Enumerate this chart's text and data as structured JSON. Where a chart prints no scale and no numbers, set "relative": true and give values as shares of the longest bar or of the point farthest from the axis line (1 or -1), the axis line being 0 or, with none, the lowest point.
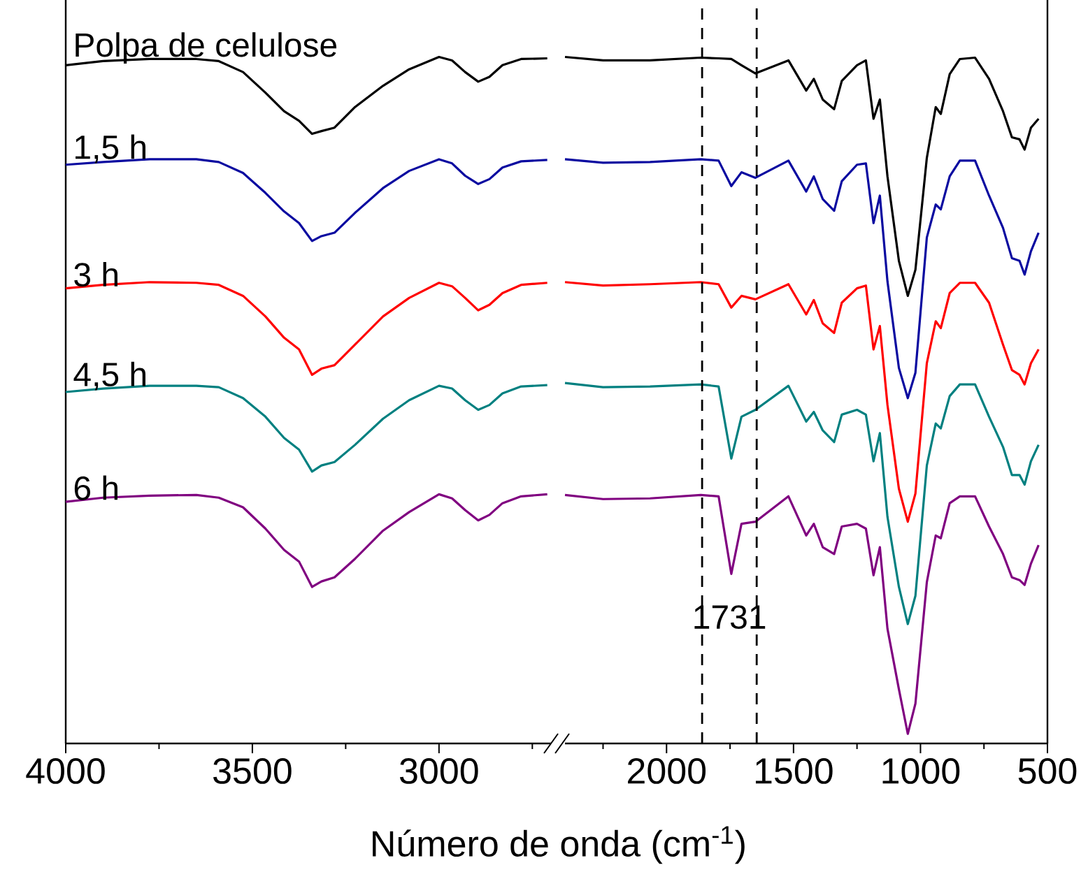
{
  "chart_data": [
    {
      "type": "line",
      "relative": true,
      "xlabel": "Número de onda (cm$^{-1}$)",
      "xlim": [
        4000,
        2700
      ],
      "xticks": [
        4000,
        3500,
        3000
      ],
      "x": [
        4000,
        3900,
        3775,
        3650,
        3590,
        3525,
        3465,
        3415,
        3375,
        3340,
        3315,
        3280,
        3225,
        3150,
        3080,
        3000,
        2965,
        2930,
        2895,
        2865,
        2830,
        2780,
        2710
      ],
      "series": [
        {
          "name": "Polpa de celulose",
          "color": "#000000",
          "values": [
            0.988,
            0.994,
            0.997,
            0.997,
            0.994,
            0.978,
            0.948,
            0.921,
            0.907,
            0.888,
            0.892,
            0.897,
            0.927,
            0.958,
            0.982,
            1.0,
            0.995,
            0.978,
            0.964,
            0.971,
            0.988,
            0.997,
            0.998
          ]
        },
        {
          "name": "1,5 h",
          "color": "#0a0aa0",
          "values": [
            0.843,
            0.847,
            0.851,
            0.851,
            0.847,
            0.831,
            0.802,
            0.775,
            0.758,
            0.732,
            0.739,
            0.744,
            0.773,
            0.809,
            0.834,
            0.851,
            0.845,
            0.827,
            0.815,
            0.822,
            0.839,
            0.848,
            0.85
          ]
        },
        {
          "name": "3 h",
          "color": "#ff0000",
          "values": [
            0.663,
            0.668,
            0.672,
            0.671,
            0.668,
            0.652,
            0.622,
            0.591,
            0.574,
            0.537,
            0.546,
            0.551,
            0.581,
            0.622,
            0.649,
            0.671,
            0.666,
            0.649,
            0.631,
            0.639,
            0.656,
            0.668,
            0.671
          ]
        },
        {
          "name": "4,5 h",
          "color": "#008080",
          "values": [
            0.512,
            0.517,
            0.521,
            0.521,
            0.519,
            0.503,
            0.476,
            0.445,
            0.428,
            0.396,
            0.405,
            0.41,
            0.435,
            0.473,
            0.5,
            0.521,
            0.517,
            0.5,
            0.486,
            0.493,
            0.51,
            0.52,
            0.522
          ]
        },
        {
          "name": "6 h",
          "color": "#800080",
          "values": [
            0.352,
            0.358,
            0.361,
            0.362,
            0.358,
            0.344,
            0.313,
            0.282,
            0.265,
            0.228,
            0.236,
            0.242,
            0.269,
            0.31,
            0.337,
            0.363,
            0.357,
            0.34,
            0.325,
            0.333,
            0.35,
            0.36,
            0.363
          ]
        }
      ]
    },
    {
      "type": "line",
      "relative": true,
      "xlim": [
        2400,
        500
      ],
      "xticks": [
        2000,
        1500,
        1000,
        500
      ],
      "x": [
        2400,
        2250,
        2065,
        1865,
        1795,
        1745,
        1705,
        1650,
        1520,
        1450,
        1420,
        1385,
        1340,
        1310,
        1250,
        1215,
        1185,
        1160,
        1130,
        1085,
        1050,
        1020,
        975,
        940,
        920,
        885,
        845,
        785,
        730,
        675,
        640,
        610,
        590,
        565,
        535
      ],
      "series": [
        {
          "color": "#000000",
          "values": [
            1.0,
            0.995,
            0.995,
            0.999,
            0.998,
            0.997,
            0.988,
            0.976,
            0.995,
            0.951,
            0.968,
            0.938,
            0.924,
            0.965,
            0.988,
            0.995,
            0.91,
            0.938,
            0.826,
            0.703,
            0.652,
            0.69,
            0.853,
            0.927,
            0.917,
            0.975,
            0.997,
            0.999,
            0.968,
            0.921,
            0.883,
            0.88,
            0.865,
            0.897,
            0.91
          ]
        },
        {
          "color": "#0a0aa0",
          "values": [
            0.851,
            0.846,
            0.847,
            0.851,
            0.849,
            0.812,
            0.832,
            0.824,
            0.849,
            0.804,
            0.826,
            0.793,
            0.776,
            0.819,
            0.843,
            0.845,
            0.758,
            0.798,
            0.673,
            0.547,
            0.503,
            0.54,
            0.737,
            0.785,
            0.778,
            0.826,
            0.849,
            0.849,
            0.798,
            0.751,
            0.707,
            0.703,
            0.683,
            0.717,
            0.744
          ]
        },
        {
          "color": "#ff0000",
          "values": [
            0.672,
            0.667,
            0.669,
            0.672,
            0.669,
            0.635,
            0.652,
            0.647,
            0.669,
            0.625,
            0.646,
            0.612,
            0.598,
            0.642,
            0.663,
            0.667,
            0.574,
            0.608,
            0.493,
            0.371,
            0.323,
            0.364,
            0.554,
            0.615,
            0.605,
            0.656,
            0.671,
            0.671,
            0.642,
            0.581,
            0.544,
            0.537,
            0.523,
            0.554,
            0.574
          ]
        },
        {
          "color": "#008080",
          "values": [
            0.525,
            0.519,
            0.52,
            0.523,
            0.52,
            0.415,
            0.476,
            0.486,
            0.521,
            0.469,
            0.483,
            0.456,
            0.439,
            0.479,
            0.486,
            0.479,
            0.411,
            0.452,
            0.33,
            0.228,
            0.174,
            0.215,
            0.405,
            0.466,
            0.459,
            0.506,
            0.523,
            0.523,
            0.476,
            0.432,
            0.391,
            0.391,
            0.377,
            0.411,
            0.435
          ]
        },
        {
          "color": "#800080",
          "values": [
            0.362,
            0.356,
            0.357,
            0.362,
            0.36,
            0.247,
            0.32,
            0.323,
            0.36,
            0.303,
            0.32,
            0.286,
            0.276,
            0.316,
            0.32,
            0.313,
            0.245,
            0.286,
            0.167,
            0.079,
            0.014,
            0.058,
            0.235,
            0.303,
            0.299,
            0.35,
            0.36,
            0.36,
            0.316,
            0.276,
            0.242,
            0.238,
            0.231,
            0.262,
            0.289
          ]
        }
      ],
      "ref_lines": [
        {
          "axis": "x",
          "value": 1860,
          "line_style": "dashed",
          "color": "#000000"
        },
        {
          "axis": "x",
          "value": 1645,
          "line_style": "dashed",
          "color": "#000000"
        }
      ],
      "annotations": [
        "1731"
      ]
    }
  ]
}
